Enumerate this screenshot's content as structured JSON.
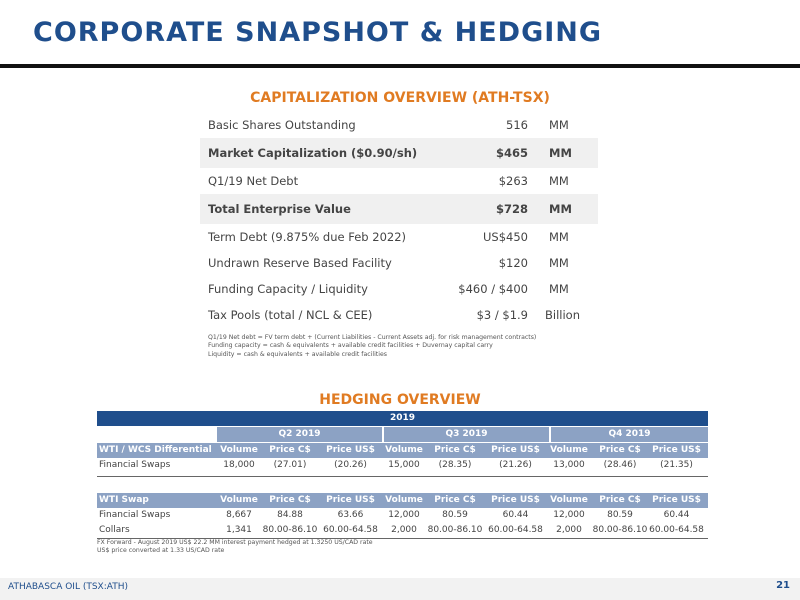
{
  "title": "CORPORATE SNAPSHOT & HEDGING",
  "capitalization": {
    "heading": "CAPITALIZATION OVERVIEW (ATH-TSX)",
    "rows": [
      {
        "label": "Basic Shares Outstanding",
        "value": "516",
        "unit": "MM"
      },
      {
        "label": "Market Capitalization ($0.90/sh)",
        "value": "$465",
        "unit": "MM"
      },
      {
        "label": "Q1/19 Net Debt",
        "value": "$263",
        "unit": "MM"
      },
      {
        "label": "Total Enterprise Value",
        "value": "$728",
        "unit": "MM"
      },
      {
        "label": "Term Debt (9.875% due Feb 2022)",
        "value": "US$450",
        "unit": "MM"
      },
      {
        "label": "Undrawn Reserve Based Facility",
        "value": "$120",
        "unit": "MM"
      },
      {
        "label": "Funding Capacity / Liquidity",
        "value": "$460 / $400",
        "unit": "MM"
      },
      {
        "label": "Tax Pools (total / NCL & CEE)",
        "value": "$3 / $1.9",
        "unit": "Billion"
      }
    ],
    "footnotes": [
      "Q1/19 Net debt = FV term debt + (Current Liabilities - Current Assets adj. for risk management contracts)",
      "Funding capacity = cash & equivalents + available credit facilities + Duvernay capital carry",
      "Liquidity = cash & equivalents + available credit facilities"
    ]
  },
  "hedging": {
    "heading": "HEDGING OVERVIEW",
    "year": "2019",
    "quarters": [
      "Q2 2019",
      "Q3 2019",
      "Q4 2019"
    ],
    "col_headers": [
      "Volume",
      "Price C$",
      "Price US$"
    ],
    "sections": [
      {
        "header": "WTI / WCS Differential",
        "rows": [
          {
            "label": "Financial Swaps",
            "cells": [
              "18,000",
              "(27.01)",
              "(20.26)",
              "15,000",
              "(28.35)",
              "(21.26)",
              "13,000",
              "(28.46)",
              "(21.35)"
            ]
          }
        ]
      },
      {
        "header": "WTI Swap",
        "rows": [
          {
            "label": "Financial Swaps",
            "cells": [
              "8,667",
              "84.88",
              "63.66",
              "12,000",
              "80.59",
              "60.44",
              "12,000",
              "80.59",
              "60.44"
            ]
          },
          {
            "label": "Collars",
            "cells": [
              "1,341",
              "80.00-86.10",
              "60.00-64.58",
              "2,000",
              "80.00-86.10",
              "60.00-64.58",
              "2,000",
              "80.00-86.10",
              "60.00-64.58"
            ]
          }
        ]
      }
    ],
    "footnotes": [
      "FX Forward - August 2019 US$ 22.2 MM interest payment hedged at 1.3250 US/CAD rate",
      "US$ price converted at 1.33 US/CAD rate"
    ]
  },
  "footer": {
    "company": "ATHABASCA OIL (TSX:ATH)",
    "page_number": "21"
  }
}
